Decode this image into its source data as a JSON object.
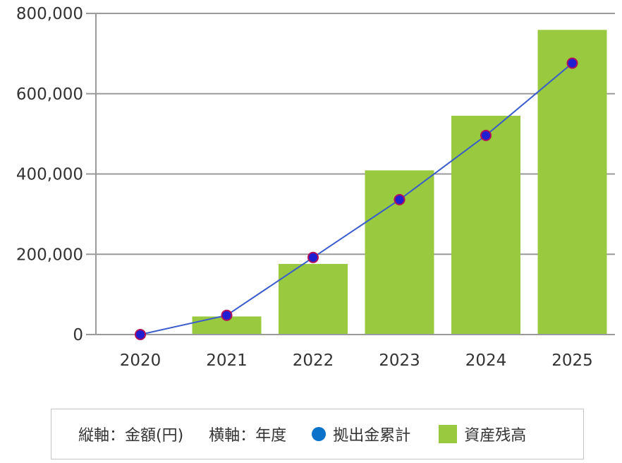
{
  "chart_data": {
    "type": "bar",
    "categories": [
      "2020",
      "2021",
      "2022",
      "2023",
      "2024",
      "2025"
    ],
    "series": [
      {
        "name": "資産残高",
        "kind": "bar",
        "color": "#99c93f",
        "values": [
          0,
          45000,
          176000,
          409000,
          545000,
          759000
        ]
      },
      {
        "name": "拠出金累計",
        "kind": "line",
        "color": "#3a5ccc",
        "marker_fill": "#1f1fd1",
        "marker_stroke": "#b0105c",
        "values": [
          0,
          48000,
          192000,
          336000,
          496000,
          676000
        ]
      }
    ],
    "ylim": [
      0,
      800000
    ],
    "yticks": [
      "0",
      "200,000",
      "400,000",
      "600,000",
      "800,000"
    ],
    "ytick_values": [
      0,
      200000,
      400000,
      600000,
      800000
    ],
    "grid": true,
    "legend_placement": "bottom"
  },
  "legend": {
    "y_axis_label": "縦軸：金額(円)",
    "x_axis_label": "横軸：年度",
    "line_series_label": "拠出金累計",
    "bar_series_label": "資産残高",
    "line_color": "#0a72c8",
    "bar_color": "#99c93f"
  }
}
